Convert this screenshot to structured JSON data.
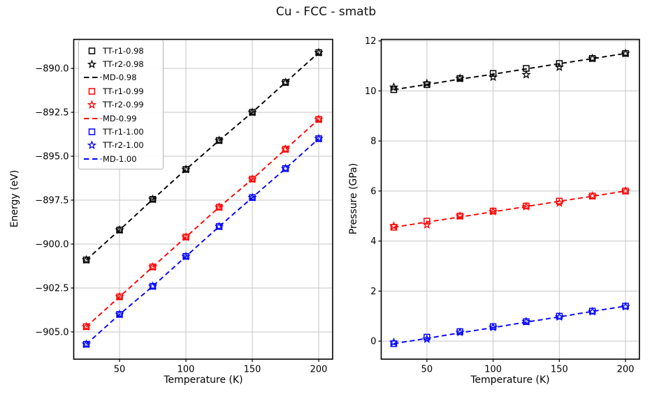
{
  "figure": {
    "title": "Cu - FCC - smatb",
    "background": "#ffffff"
  },
  "colors": {
    "black": "#000000",
    "red": "#ff0000",
    "blue": "#0000ff",
    "grid": "#c6c6c6",
    "spine": "#000000"
  },
  "chart_data": [
    {
      "type": "line",
      "name": "energy-vs-temperature",
      "xlabel": "Temperature (K)",
      "ylabel": "Energy (eV)",
      "xlim": [
        15.5,
        210.5
      ],
      "ylim": [
        -906.55,
        -888.35
      ],
      "grid": true,
      "legend_position": "upper-left",
      "xticks": [
        50,
        100,
        150,
        200
      ],
      "xtick_labels": [
        "50",
        "100",
        "150",
        "200"
      ],
      "yticks": [
        -890.0,
        -892.5,
        -895.0,
        -897.5,
        -900.0,
        -902.5,
        -905.0
      ],
      "ytick_labels": [
        "−890.0",
        "−892.5",
        "−895.0",
        "−897.5",
        "−900.0",
        "−902.5",
        "−905.0"
      ],
      "x": [
        25,
        50,
        75,
        100,
        125,
        150,
        175,
        200
      ],
      "series": [
        {
          "name": "TT-r1-0.98",
          "style": "square",
          "color": "black",
          "values": [
            -900.9,
            -899.2,
            -897.45,
            -895.75,
            -894.1,
            -892.5,
            -890.8,
            -889.1
          ]
        },
        {
          "name": "TT-r2-0.98",
          "style": "star",
          "color": "black",
          "values": [
            -900.9,
            -899.2,
            -897.45,
            -895.75,
            -894.1,
            -892.5,
            -890.8,
            -889.1
          ]
        },
        {
          "name": "MD-0.98",
          "style": "dash",
          "color": "black",
          "values": [
            -900.9,
            -899.2,
            -897.45,
            -895.75,
            -894.1,
            -892.5,
            -890.8,
            -889.1
          ]
        },
        {
          "name": "TT-r1-0.99",
          "style": "square",
          "color": "red",
          "values": [
            -904.7,
            -903.0,
            -901.3,
            -899.6,
            -897.9,
            -896.3,
            -894.6,
            -892.9
          ]
        },
        {
          "name": "TT-r2-0.99",
          "style": "star",
          "color": "red",
          "values": [
            -904.7,
            -903.0,
            -901.3,
            -899.6,
            -897.9,
            -896.3,
            -894.6,
            -892.9
          ]
        },
        {
          "name": "MD-0.99",
          "style": "dash",
          "color": "red",
          "values": [
            -904.7,
            -903.0,
            -901.3,
            -899.6,
            -897.9,
            -896.3,
            -894.6,
            -892.9
          ]
        },
        {
          "name": "TT-r1-1.00",
          "style": "square",
          "color": "blue",
          "values": [
            -905.7,
            -904.0,
            -902.4,
            -900.7,
            -899.0,
            -897.35,
            -895.7,
            -894.0
          ]
        },
        {
          "name": "TT-r2-1.00",
          "style": "star",
          "color": "blue",
          "values": [
            -905.7,
            -904.0,
            -902.4,
            -900.7,
            -899.0,
            -897.35,
            -895.7,
            -894.0
          ]
        },
        {
          "name": "MD-1.00",
          "style": "dash",
          "color": "blue",
          "values": [
            -905.7,
            -904.0,
            -902.4,
            -900.7,
            -899.0,
            -897.35,
            -895.7,
            -894.0
          ]
        }
      ]
    },
    {
      "type": "line",
      "name": "pressure-vs-temperature",
      "xlabel": "Temperature (K)",
      "ylabel": "Pressure (GPa)",
      "xlim": [
        15.5,
        210.5
      ],
      "ylim": [
        -0.72,
        12.06
      ],
      "grid": true,
      "legend_position": "none",
      "xticks": [
        50,
        100,
        150,
        200
      ],
      "xtick_labels": [
        "50",
        "100",
        "150",
        "200"
      ],
      "yticks": [
        0,
        2,
        4,
        6,
        8,
        10,
        12
      ],
      "ytick_labels": [
        "0",
        "2",
        "4",
        "6",
        "8",
        "10",
        "12"
      ],
      "x": [
        25,
        50,
        75,
        100,
        125,
        150,
        175,
        200
      ],
      "series": [
        {
          "name": "TT-r1-0.98",
          "style": "square",
          "color": "black",
          "values": [
            10.05,
            10.25,
            10.5,
            10.7,
            10.9,
            11.1,
            11.3,
            11.5
          ]
        },
        {
          "name": "TT-r2-0.98",
          "style": "star",
          "color": "black",
          "values": [
            10.15,
            10.3,
            10.5,
            10.55,
            10.65,
            10.95,
            11.3,
            11.5
          ]
        },
        {
          "name": "MD-0.98",
          "style": "dash",
          "color": "black",
          "values": [
            10.05,
            10.26,
            10.47,
            10.67,
            10.88,
            11.09,
            11.29,
            11.5
          ]
        },
        {
          "name": "TT-r1-0.99",
          "style": "square",
          "color": "red",
          "values": [
            4.55,
            4.8,
            5.0,
            5.2,
            5.4,
            5.6,
            5.8,
            6.0
          ]
        },
        {
          "name": "TT-r2-0.99",
          "style": "star",
          "color": "red",
          "values": [
            4.6,
            4.65,
            5.0,
            5.18,
            5.38,
            5.52,
            5.8,
            6.0
          ]
        },
        {
          "name": "MD-0.99",
          "style": "dash",
          "color": "red",
          "values": [
            4.55,
            4.76,
            4.96,
            5.17,
            5.38,
            5.59,
            5.79,
            6.0
          ]
        },
        {
          "name": "TT-r1-1.00",
          "style": "square",
          "color": "blue",
          "values": [
            -0.1,
            0.16,
            0.38,
            0.58,
            0.78,
            1.0,
            1.2,
            1.4
          ]
        },
        {
          "name": "TT-r2-1.00",
          "style": "star",
          "color": "blue",
          "values": [
            -0.05,
            0.08,
            0.35,
            0.55,
            0.78,
            0.97,
            1.18,
            1.38
          ]
        },
        {
          "name": "MD-1.00",
          "style": "dash",
          "color": "blue",
          "values": [
            -0.1,
            0.11,
            0.33,
            0.54,
            0.76,
            0.97,
            1.19,
            1.4
          ]
        }
      ]
    }
  ]
}
